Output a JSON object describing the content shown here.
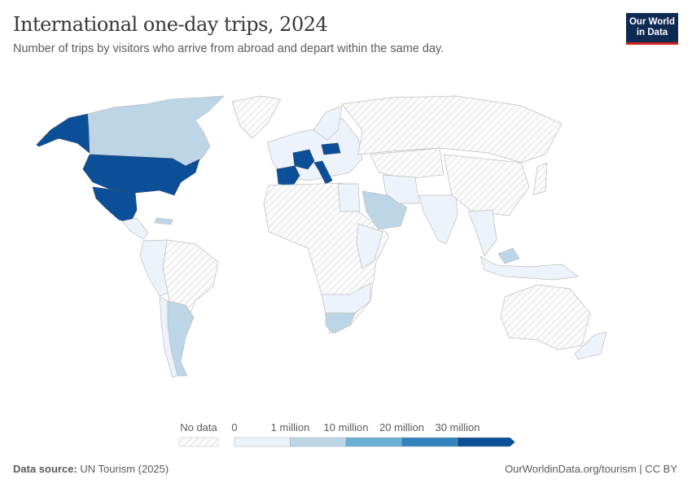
{
  "header": {
    "title": "International one-day trips, 2024",
    "subtitle": "Number of trips by visitors who arrive from abroad and depart within the same day.",
    "logo_line1": "Our World",
    "logo_line2": "in Data"
  },
  "chart_data": {
    "type": "choropleth-map",
    "title": "International one-day trips, 2024",
    "subtitle": "Number of trips by visitors who arrive from abroad and depart within the same day.",
    "legend": {
      "no_data_label": "No data",
      "bins": [
        {
          "label_start": "0",
          "color": "#eef2fb"
        },
        {
          "label_start": "1 million",
          "color": "#bdd6e7"
        },
        {
          "label_start": "10 million",
          "color": "#6baed6"
        },
        {
          "label_start": "20 million",
          "color": "#3182bd"
        },
        {
          "label_start": "30 million",
          "color": "#0b4f99"
        }
      ],
      "placement": "bottom-center"
    },
    "regions": [
      {
        "name": "Alaska (United States)",
        "bin": 4
      },
      {
        "name": "Canada",
        "bin": 1
      },
      {
        "name": "Greenland",
        "bin": -1
      },
      {
        "name": "United States",
        "bin": 4
      },
      {
        "name": "Mexico",
        "bin": 4
      },
      {
        "name": "Central America",
        "bin": 0
      },
      {
        "name": "Caribbean",
        "bin": 1
      },
      {
        "name": "Brazil",
        "bin": -1
      },
      {
        "name": "Western South America",
        "bin": 0
      },
      {
        "name": "Argentina",
        "bin": 1
      },
      {
        "name": "Chile",
        "bin": 0
      },
      {
        "name": "Europe (other)",
        "bin": 0
      },
      {
        "name": "Spain",
        "bin": 4
      },
      {
        "name": "France",
        "bin": 4
      },
      {
        "name": "Italy",
        "bin": 4
      },
      {
        "name": "Poland",
        "bin": 4
      },
      {
        "name": "Scandinavia",
        "bin": 0
      },
      {
        "name": "Russia",
        "bin": -1
      },
      {
        "name": "Central Asia",
        "bin": -1
      },
      {
        "name": "Africa (other)",
        "bin": -1
      },
      {
        "name": "Egypt",
        "bin": 0
      },
      {
        "name": "East Africa",
        "bin": 0
      },
      {
        "name": "Southern Africa (other)",
        "bin": 0
      },
      {
        "name": "South Africa",
        "bin": 1
      },
      {
        "name": "Saudi Arabia",
        "bin": 1
      },
      {
        "name": "Iran",
        "bin": 0
      },
      {
        "name": "India",
        "bin": 0
      },
      {
        "name": "China",
        "bin": -1
      },
      {
        "name": "Southeast Asia",
        "bin": 0
      },
      {
        "name": "Malaysia",
        "bin": 1
      },
      {
        "name": "Indonesia",
        "bin": 0
      },
      {
        "name": "Japan",
        "bin": -1
      },
      {
        "name": "Australia",
        "bin": -1
      },
      {
        "name": "New Zealand",
        "bin": 0
      }
    ]
  },
  "footer": {
    "source_label": "Data source:",
    "source_value": "UN Tourism (2025)",
    "link": "OurWorldinData.org/tourism | CC BY"
  }
}
